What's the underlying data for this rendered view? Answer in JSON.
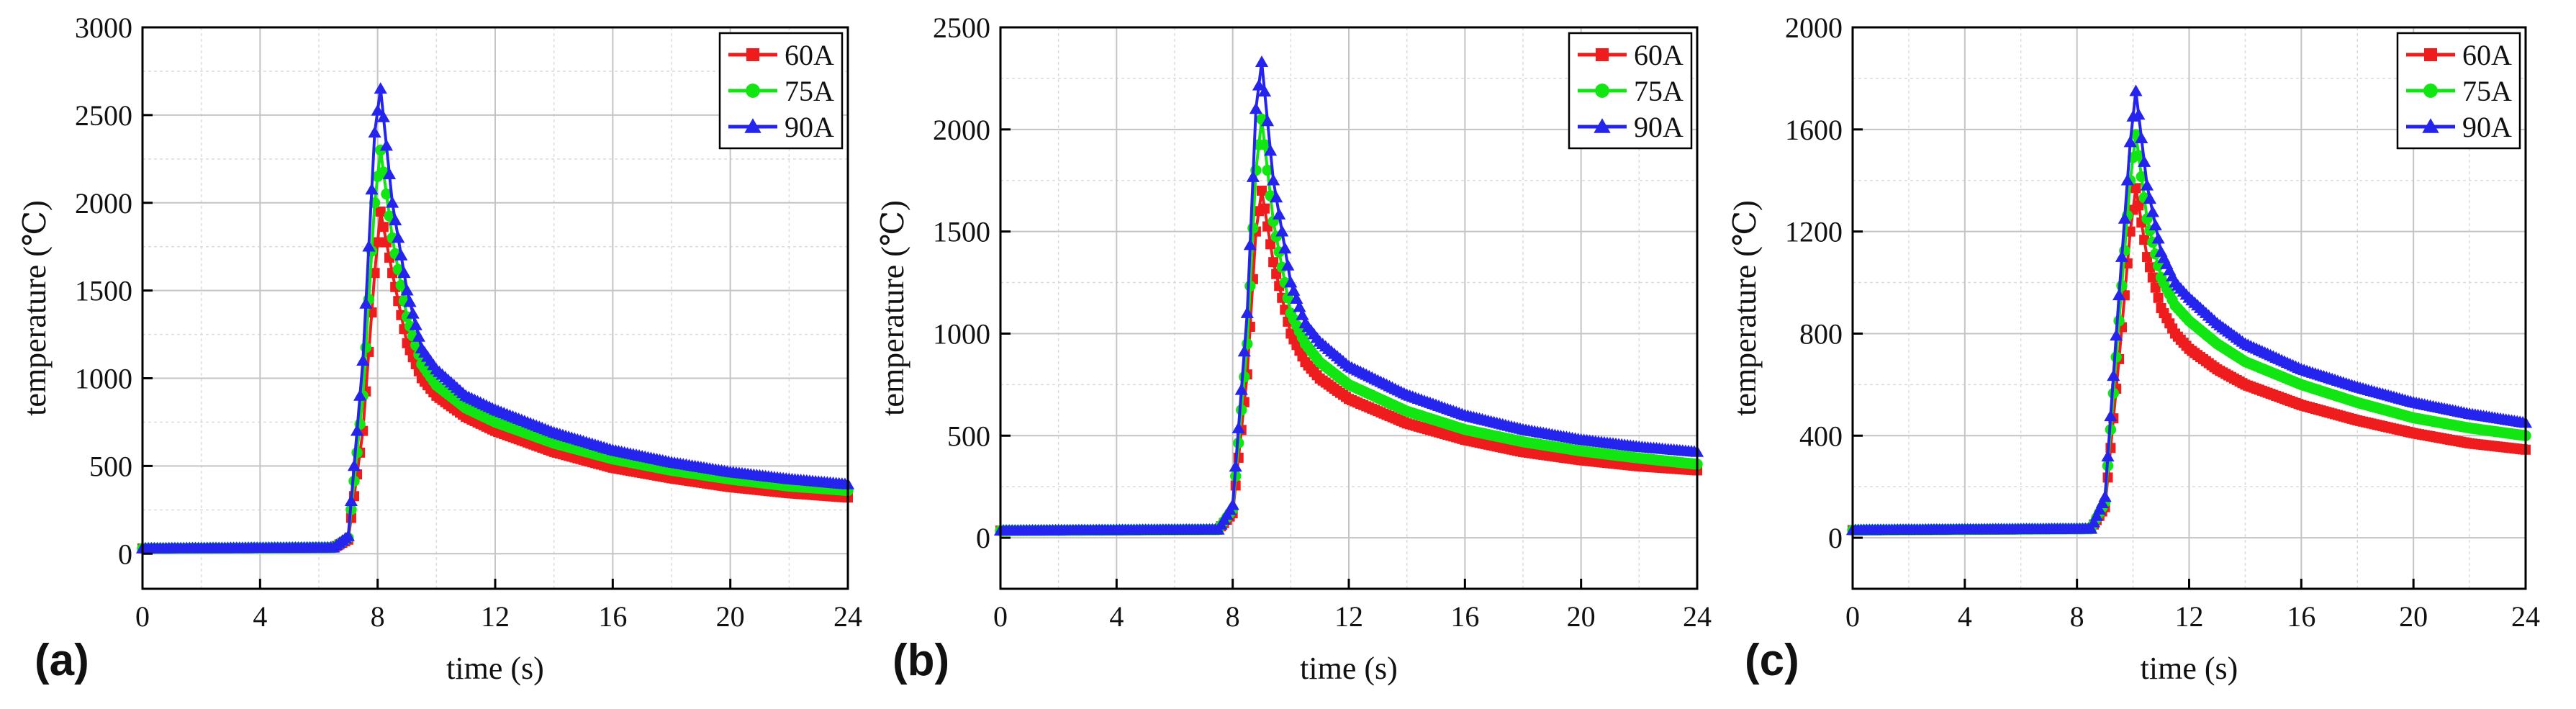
{
  "chart_data": [
    {
      "type": "line",
      "panel_label": "(a)",
      "xlabel": "time (s)",
      "ylabel": "temperature (℃)",
      "xlim": [
        0,
        24
      ],
      "ylim": [
        -200,
        3000
      ],
      "xticks": [
        0,
        4,
        8,
        12,
        16,
        20,
        24
      ],
      "yticks": [
        0,
        500,
        1000,
        1500,
        2000,
        2500,
        3000
      ],
      "grid": true,
      "legend_position": "top-right",
      "series": [
        {
          "name": "60A",
          "color": "#ee1c1c",
          "marker": "square",
          "x": [
            0,
            6.5,
            7.0,
            7.5,
            7.9,
            8.1,
            8.5,
            9.0,
            9.5,
            10,
            11,
            12,
            14,
            16,
            18,
            20,
            22,
            24
          ],
          "y": [
            30,
            35,
            80,
            700,
            1600,
            1950,
            1600,
            1200,
            1000,
            900,
            780,
            700,
            580,
            490,
            430,
            380,
            345,
            320
          ]
        },
        {
          "name": "75A",
          "color": "#12e612",
          "marker": "circle",
          "x": [
            0,
            6.5,
            7.0,
            7.5,
            7.9,
            8.1,
            8.5,
            9.0,
            9.5,
            10,
            11,
            12,
            14,
            16,
            18,
            20,
            22,
            24
          ],
          "y": [
            30,
            35,
            90,
            900,
            2000,
            2300,
            1800,
            1350,
            1080,
            960,
            830,
            750,
            630,
            540,
            475,
            425,
            385,
            360
          ]
        },
        {
          "name": "90A",
          "color": "#2424ee",
          "marker": "triangle",
          "x": [
            0,
            6.5,
            7.0,
            7.5,
            7.9,
            8.1,
            8.5,
            9.0,
            9.5,
            10,
            11,
            12,
            14,
            16,
            18,
            20,
            22,
            24
          ],
          "y": [
            30,
            35,
            100,
            1100,
            2400,
            2650,
            2000,
            1500,
            1170,
            1050,
            900,
            820,
            690,
            590,
            520,
            465,
            425,
            395
          ]
        }
      ]
    },
    {
      "type": "line",
      "panel_label": "(b)",
      "xlabel": "time (s)",
      "ylabel": "temperature (℃)",
      "xlim": [
        0,
        24
      ],
      "ylim": [
        -250,
        2500
      ],
      "xticks": [
        0,
        4,
        8,
        12,
        16,
        20,
        24
      ],
      "yticks": [
        0,
        500,
        1000,
        1500,
        2000,
        2500
      ],
      "grid": true,
      "legend_position": "top-right",
      "series": [
        {
          "name": "60A",
          "color": "#ee1c1c",
          "marker": "square",
          "x": [
            0,
            7.5,
            8.0,
            8.5,
            8.8,
            9.0,
            9.4,
            10,
            10.5,
            11,
            12,
            14,
            16,
            18,
            20,
            22,
            24
          ],
          "y": [
            35,
            40,
            120,
            800,
            1500,
            1700,
            1350,
            1000,
            860,
            780,
            680,
            560,
            480,
            420,
            380,
            350,
            330
          ]
        },
        {
          "name": "75A",
          "color": "#12e612",
          "marker": "circle",
          "x": [
            0,
            7.5,
            8.0,
            8.5,
            8.8,
            9.0,
            9.4,
            10,
            10.5,
            11,
            12,
            14,
            16,
            18,
            20,
            22,
            24
          ],
          "y": [
            35,
            40,
            140,
            950,
            1800,
            2050,
            1550,
            1100,
            950,
            860,
            750,
            620,
            530,
            470,
            425,
            390,
            360
          ]
        },
        {
          "name": "90A",
          "color": "#2424ee",
          "marker": "triangle",
          "x": [
            0,
            7.5,
            8.0,
            8.5,
            8.8,
            9.0,
            9.4,
            10,
            10.5,
            11,
            12,
            14,
            16,
            18,
            20,
            22,
            24
          ],
          "y": [
            35,
            40,
            160,
            1100,
            2100,
            2330,
            1750,
            1250,
            1050,
            960,
            840,
            700,
            600,
            530,
            480,
            445,
            420
          ]
        }
      ]
    },
    {
      "type": "line",
      "panel_label": "(c)",
      "xlabel": "time (s)",
      "ylabel": "temperature (℃)",
      "xlim": [
        0,
        24
      ],
      "ylim": [
        -200,
        2000
      ],
      "xticks": [
        0,
        4,
        8,
        12,
        16,
        20,
        24
      ],
      "yticks": [
        0,
        400,
        800,
        1200,
        1600,
        2000
      ],
      "grid": true,
      "legend_position": "top-right",
      "series": [
        {
          "name": "60A",
          "color": "#ee1c1c",
          "marker": "square",
          "x": [
            0,
            8.5,
            9.0,
            9.5,
            9.9,
            10.1,
            10.5,
            11,
            11.5,
            12,
            13,
            14,
            16,
            18,
            20,
            22,
            24
          ],
          "y": [
            30,
            35,
            120,
            700,
            1200,
            1370,
            1100,
            900,
            800,
            740,
            660,
            600,
            520,
            460,
            410,
            370,
            345
          ]
        },
        {
          "name": "75A",
          "color": "#12e612",
          "marker": "circle",
          "x": [
            0,
            8.5,
            9.0,
            9.5,
            9.9,
            10.1,
            10.5,
            11,
            11.5,
            12,
            13,
            14,
            16,
            18,
            20,
            22,
            24
          ],
          "y": [
            30,
            35,
            140,
            850,
            1400,
            1580,
            1250,
            1020,
            910,
            850,
            760,
            690,
            600,
            530,
            470,
            430,
            400
          ]
        },
        {
          "name": "90A",
          "color": "#2424ee",
          "marker": "triangle",
          "x": [
            0,
            8.5,
            9.0,
            9.5,
            9.9,
            10.1,
            10.5,
            11,
            11.5,
            12,
            13,
            14,
            16,
            18,
            20,
            22,
            24
          ],
          "y": [
            30,
            35,
            160,
            950,
            1550,
            1750,
            1380,
            1120,
            1000,
            940,
            840,
            760,
            660,
            590,
            530,
            485,
            450
          ]
        }
      ]
    }
  ]
}
